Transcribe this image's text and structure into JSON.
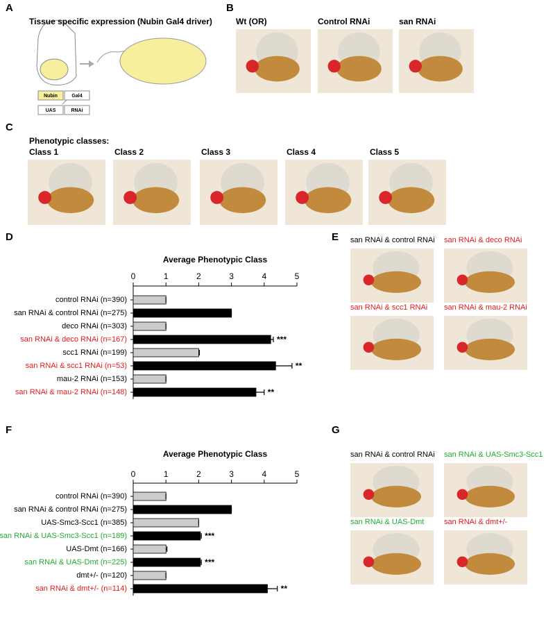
{
  "panel_labels": [
    "A",
    "B",
    "C",
    "D",
    "E",
    "F",
    "G"
  ],
  "panel_a": {
    "title": "Tissue specific expression (Nubin Gal4 driver)",
    "boxes": [
      "Nubin",
      "Gal4",
      "UAS",
      "RNAi"
    ]
  },
  "panel_b": {
    "captions": [
      "Wt (OR)",
      "Control RNAi",
      "san RNAi"
    ]
  },
  "panel_c": {
    "title": "Phenotypic classes:",
    "captions": [
      "Class 1",
      "Class 2",
      "Class 3",
      "Class 4",
      "Class 5"
    ]
  },
  "panel_e": {
    "captions": [
      {
        "text": "san RNAi & control RNAi",
        "color": "#000000"
      },
      {
        "text": "san RNAi & deco RNAi",
        "color": "#e41a1c"
      },
      {
        "text": "san RNAi & scc1 RNAi",
        "color": "#e41a1c"
      },
      {
        "text": "san RNAi & mau-2 RNAi",
        "color": "#e41a1c"
      }
    ]
  },
  "panel_g": {
    "captions": [
      {
        "text": "san RNAi & control RNAi",
        "color": "#000000"
      },
      {
        "text": "san RNAi & UAS-Smc3-Scc1",
        "color": "#1fae2c"
      },
      {
        "text": "san RNAi & UAS-Dmt",
        "color": "#1fae2c"
      },
      {
        "text": "san RNAi & dmt+/-",
        "color": "#e41a1c"
      }
    ]
  },
  "chart_data": [
    {
      "type": "bar",
      "orientation": "horizontal",
      "title": "Average Phenotypic Class",
      "categories": [
        "control RNAi (n=390)",
        "san RNAi & control RNAi (n=275)",
        "deco RNAi (n=303)",
        "san RNAi & deco RNAi (n=167)",
        "scc1 RNAi (n=199)",
        "san RNAi & scc1 RNAi (n=53)",
        "mau-2 RNAi (n=153)",
        "san RNAi & mau-2 RNAi (n=148)"
      ],
      "category_colors": [
        "#000000",
        "#000000",
        "#000000",
        "#e41a1c",
        "#000000",
        "#e41a1c",
        "#000000",
        "#e41a1c"
      ],
      "values": [
        1.0,
        3.0,
        1.0,
        4.2,
        2.0,
        4.35,
        1.0,
        3.75
      ],
      "errors": [
        0,
        0,
        0,
        0.08,
        0.02,
        0.5,
        0,
        0.25
      ],
      "colors": [
        "#cccccc",
        "#000000",
        "#cccccc",
        "#000000",
        "#cccccc",
        "#000000",
        "#cccccc",
        "#000000"
      ],
      "significance": [
        null,
        null,
        null,
        "***",
        null,
        "**",
        null,
        "**"
      ],
      "xlim": [
        0,
        5
      ],
      "xticks": [
        0,
        1,
        2,
        3,
        4,
        5
      ]
    },
    {
      "type": "bar",
      "orientation": "horizontal",
      "title": "Average Phenotypic Class",
      "categories": [
        "control RNAi (n=390)",
        "san RNAi & control RNAi (n=275)",
        "UAS-Smc3-Scc1 (n=385)",
        "san RNAi & UAS-Smc3-Scc1 (n=189)",
        "UAS-Dmt (n=166)",
        "san RNAi & UAS-Dmt (n=225)",
        "dmt+/- (n=120)",
        "san RNAi & dmt+/- (n=114)"
      ],
      "category_colors": [
        "#000000",
        "#000000",
        "#000000",
        "#1fae2c",
        "#000000",
        "#1fae2c",
        "#000000",
        "#e41a1c"
      ],
      "values": [
        1.0,
        3.0,
        2.0,
        2.05,
        1.0,
        2.05,
        1.0,
        4.1
      ],
      "errors": [
        0,
        0,
        0,
        0.03,
        0.03,
        0.03,
        0,
        0.3
      ],
      "colors": [
        "#cccccc",
        "#000000",
        "#cccccc",
        "#000000",
        "#cccccc",
        "#000000",
        "#cccccc",
        "#000000"
      ],
      "significance": [
        null,
        null,
        null,
        "***",
        null,
        "***",
        null,
        "**"
      ],
      "xlim": [
        0,
        5
      ],
      "xticks": [
        0,
        1,
        2,
        3,
        4,
        5
      ]
    }
  ]
}
